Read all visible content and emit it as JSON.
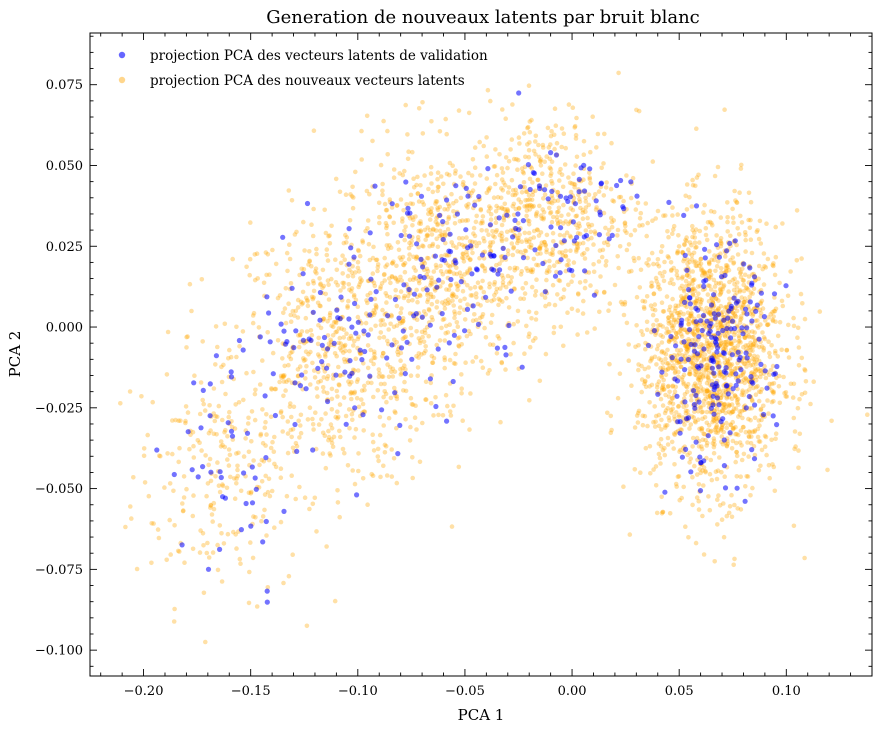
{
  "chart_data": {
    "type": "scatter",
    "title": "Generation de nouveaux latents par bruit blanc",
    "xlabel": "PCA 1",
    "ylabel": "PCA 2",
    "xlim": [
      -0.225,
      0.14
    ],
    "ylim": [
      -0.108,
      0.091
    ],
    "xticks": [
      -0.2,
      -0.15,
      -0.1,
      -0.05,
      0.0,
      0.05,
      0.1
    ],
    "xtick_labels": [
      "−0.20",
      "−0.15",
      "−0.10",
      "−0.05",
      "0.00",
      "0.05",
      "0.10"
    ],
    "yticks": [
      -0.1,
      -0.075,
      -0.05,
      -0.025,
      0.0,
      0.025,
      0.05,
      0.075
    ],
    "ytick_labels": [
      "−0.100",
      "−0.075",
      "−0.050",
      "−0.025",
      "0.000",
      "0.025",
      "0.050",
      "0.075"
    ],
    "grid": false,
    "legend_position": "top-left",
    "series": [
      {
        "name": "projection PCA des vecteurs latents de validation",
        "color": "#0000ff",
        "opacity": 0.55,
        "cloud_spec": [
          {
            "cx": -0.155,
            "cy": -0.04,
            "sx": 0.018,
            "sy": 0.018,
            "n": 45
          },
          {
            "cx": -0.105,
            "cy": -0.002,
            "sx": 0.022,
            "sy": 0.017,
            "n": 85
          },
          {
            "cx": -0.055,
            "cy": 0.02,
            "sx": 0.02,
            "sy": 0.015,
            "n": 85
          },
          {
            "cx": -0.005,
            "cy": 0.036,
            "sx": 0.016,
            "sy": 0.012,
            "n": 60
          },
          {
            "cx": 0.066,
            "cy": -0.01,
            "sx": 0.014,
            "sy": 0.017,
            "n": 190
          }
        ]
      },
      {
        "name": "projection PCA des nouveaux vecteurs latents",
        "color": "#ffa500",
        "opacity": 0.35,
        "cloud_spec": [
          {
            "cx": -0.165,
            "cy": -0.045,
            "sx": 0.02,
            "sy": 0.02,
            "n": 230
          },
          {
            "cx": -0.11,
            "cy": -0.008,
            "sx": 0.024,
            "sy": 0.021,
            "n": 620
          },
          {
            "cx": -0.06,
            "cy": 0.018,
            "sx": 0.024,
            "sy": 0.019,
            "n": 700
          },
          {
            "cx": -0.01,
            "cy": 0.035,
            "sx": 0.02,
            "sy": 0.016,
            "n": 520
          },
          {
            "cx": 0.065,
            "cy": -0.008,
            "sx": 0.017,
            "sy": 0.021,
            "n": 1700
          }
        ]
      }
    ]
  }
}
